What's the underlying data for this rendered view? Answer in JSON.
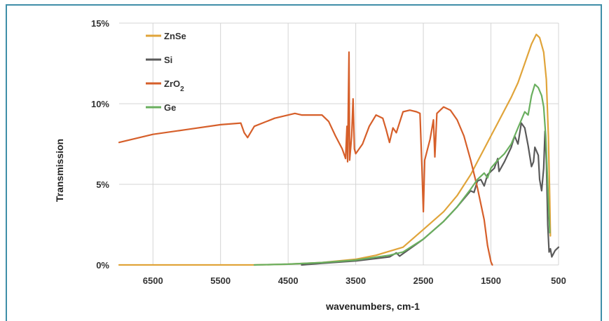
{
  "chart_data": {
    "type": "line",
    "title": "",
    "xlabel": "wavenumbers,   cm-1",
    "ylabel": "Transmission",
    "xlim": [
      7000,
      500
    ],
    "ylim": [
      0,
      15
    ],
    "x_ticks": [
      "6500",
      "5500",
      "4500",
      "3500",
      "2500",
      "1500",
      "500"
    ],
    "y_ticks": [
      "0%",
      "5%",
      "10%",
      "15%"
    ],
    "grid": true,
    "legend": "top-left",
    "series": [
      {
        "name": "ZnSe",
        "color": "#e0a43a",
        "points": [
          [
            7000,
            0
          ],
          [
            5000,
            0
          ],
          [
            4500,
            0.05
          ],
          [
            4000,
            0.15
          ],
          [
            3500,
            0.35
          ],
          [
            3200,
            0.6
          ],
          [
            3000,
            0.85
          ],
          [
            2800,
            1.1
          ],
          [
            2500,
            2.2
          ],
          [
            2200,
            3.3
          ],
          [
            2000,
            4.3
          ],
          [
            1800,
            5.6
          ],
          [
            1700,
            6.4
          ],
          [
            1600,
            7.2
          ],
          [
            1500,
            8.0
          ],
          [
            1400,
            8.8
          ],
          [
            1300,
            9.6
          ],
          [
            1200,
            10.4
          ],
          [
            1100,
            11.3
          ],
          [
            1000,
            12.5
          ],
          [
            900,
            13.7
          ],
          [
            830,
            14.3
          ],
          [
            780,
            14.1
          ],
          [
            720,
            13.2
          ],
          [
            680,
            11.5
          ],
          [
            650,
            8.0
          ],
          [
            630,
            4.0
          ],
          [
            620,
            1.8
          ]
        ]
      },
      {
        "name": "Si",
        "color": "#5a5a5a",
        "points": [
          [
            4300,
            0
          ],
          [
            4000,
            0.1
          ],
          [
            3500,
            0.25
          ],
          [
            3000,
            0.5
          ],
          [
            2900,
            0.75
          ],
          [
            2850,
            0.55
          ],
          [
            2800,
            0.7
          ],
          [
            2500,
            1.6
          ],
          [
            2200,
            2.7
          ],
          [
            2000,
            3.6
          ],
          [
            1800,
            4.6
          ],
          [
            1750,
            4.5
          ],
          [
            1700,
            5.2
          ],
          [
            1650,
            5.3
          ],
          [
            1600,
            4.9
          ],
          [
            1550,
            5.6
          ],
          [
            1500,
            5.8
          ],
          [
            1450,
            6.0
          ],
          [
            1400,
            6.6
          ],
          [
            1380,
            5.8
          ],
          [
            1300,
            6.4
          ],
          [
            1200,
            7.3
          ],
          [
            1150,
            8.0
          ],
          [
            1100,
            7.5
          ],
          [
            1050,
            8.8
          ],
          [
            1000,
            8.5
          ],
          [
            950,
            7.4
          ],
          [
            900,
            6.1
          ],
          [
            870,
            6.4
          ],
          [
            850,
            7.3
          ],
          [
            800,
            6.8
          ],
          [
            780,
            5.3
          ],
          [
            750,
            4.6
          ],
          [
            720,
            6.0
          ],
          [
            700,
            8.3
          ],
          [
            680,
            6.5
          ],
          [
            660,
            2.5
          ],
          [
            640,
            0.8
          ],
          [
            620,
            1.0
          ],
          [
            600,
            0.5
          ],
          [
            550,
            0.9
          ],
          [
            500,
            1.1
          ]
        ]
      },
      {
        "name": "ZrO2",
        "color": "#d65f2a",
        "points": [
          [
            7000,
            7.6
          ],
          [
            6500,
            8.1
          ],
          [
            6000,
            8.4
          ],
          [
            5500,
            8.7
          ],
          [
            5200,
            8.8
          ],
          [
            5150,
            8.2
          ],
          [
            5100,
            7.9
          ],
          [
            5000,
            8.6
          ],
          [
            4700,
            9.1
          ],
          [
            4400,
            9.4
          ],
          [
            4300,
            9.3
          ],
          [
            4000,
            9.3
          ],
          [
            3900,
            8.9
          ],
          [
            3800,
            8.0
          ],
          [
            3700,
            7.2
          ],
          [
            3650,
            6.6
          ],
          [
            3630,
            8.6
          ],
          [
            3620,
            6.4
          ],
          [
            3600,
            13.2
          ],
          [
            3590,
            6.5
          ],
          [
            3560,
            8.0
          ],
          [
            3540,
            10.3
          ],
          [
            3520,
            7.2
          ],
          [
            3500,
            6.9
          ],
          [
            3400,
            7.5
          ],
          [
            3300,
            8.6
          ],
          [
            3200,
            9.3
          ],
          [
            3100,
            9.1
          ],
          [
            3050,
            8.4
          ],
          [
            3000,
            7.6
          ],
          [
            2950,
            8.5
          ],
          [
            2900,
            8.2
          ],
          [
            2800,
            9.5
          ],
          [
            2700,
            9.6
          ],
          [
            2600,
            9.5
          ],
          [
            2550,
            9.4
          ],
          [
            2520,
            6.0
          ],
          [
            2500,
            3.3
          ],
          [
            2480,
            6.5
          ],
          [
            2400,
            7.8
          ],
          [
            2350,
            9.0
          ],
          [
            2330,
            6.7
          ],
          [
            2300,
            9.4
          ],
          [
            2200,
            9.8
          ],
          [
            2100,
            9.6
          ],
          [
            2000,
            9.0
          ],
          [
            1900,
            8.0
          ],
          [
            1800,
            6.5
          ],
          [
            1700,
            4.8
          ],
          [
            1600,
            2.8
          ],
          [
            1550,
            1.2
          ],
          [
            1500,
            0.2
          ],
          [
            1480,
            0
          ]
        ]
      },
      {
        "name": "Ge",
        "color": "#6aaf5f",
        "points": [
          [
            5000,
            0
          ],
          [
            4500,
            0.05
          ],
          [
            4000,
            0.15
          ],
          [
            3500,
            0.3
          ],
          [
            3000,
            0.6
          ],
          [
            2800,
            0.8
          ],
          [
            2500,
            1.6
          ],
          [
            2200,
            2.7
          ],
          [
            2000,
            3.6
          ],
          [
            1800,
            4.7
          ],
          [
            1700,
            5.3
          ],
          [
            1600,
            5.7
          ],
          [
            1550,
            5.4
          ],
          [
            1500,
            6.0
          ],
          [
            1400,
            6.5
          ],
          [
            1300,
            6.9
          ],
          [
            1200,
            7.5
          ],
          [
            1100,
            8.5
          ],
          [
            1000,
            9.5
          ],
          [
            950,
            9.3
          ],
          [
            900,
            10.5
          ],
          [
            850,
            11.2
          ],
          [
            800,
            11.0
          ],
          [
            750,
            10.5
          ],
          [
            720,
            9.8
          ],
          [
            690,
            8.0
          ],
          [
            670,
            6.0
          ],
          [
            650,
            4.0
          ],
          [
            630,
            2.0
          ]
        ]
      }
    ]
  }
}
